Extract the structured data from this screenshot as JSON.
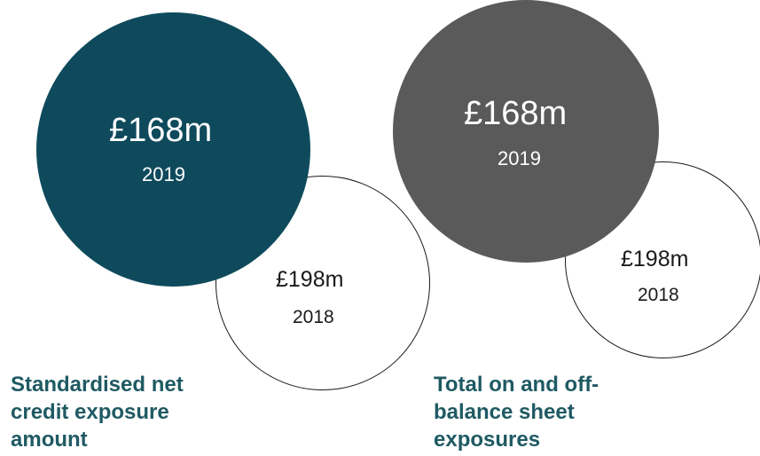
{
  "panels": [
    {
      "current": {
        "value": "£168m",
        "year": "2019",
        "color": "#0e4a5c"
      },
      "previous": {
        "value": "£198m",
        "year": "2018",
        "color": "#ffffff"
      },
      "caption": "Standardised net credit exposure amount"
    },
    {
      "current": {
        "value": "£168m",
        "year": "2019",
        "color": "#5a5a5a"
      },
      "previous": {
        "value": "£198m",
        "year": "2018",
        "color": "#ffffff"
      },
      "caption": "Total on and off-balance sheet exposures"
    }
  ],
  "caption_color": "#1f5a63"
}
